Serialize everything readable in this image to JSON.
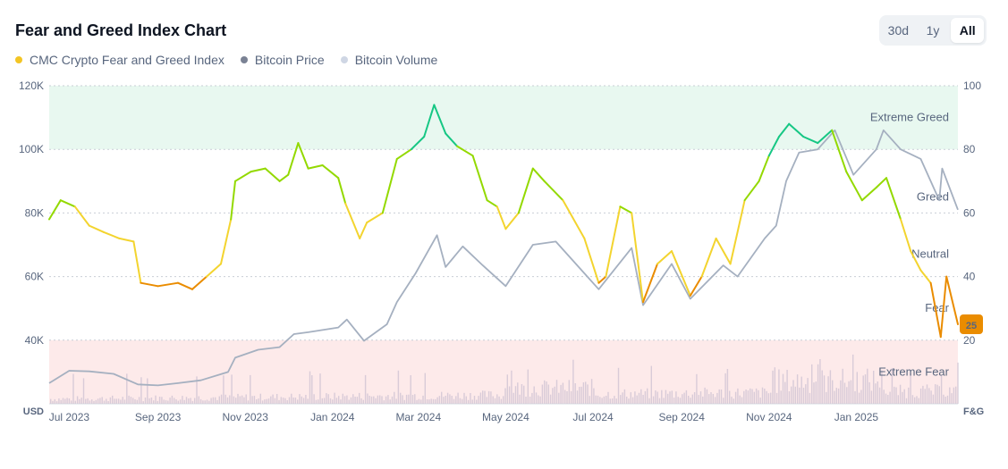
{
  "header": {
    "title": "Fear and Greed Index Chart"
  },
  "range": {
    "options": [
      "30d",
      "1y",
      "All"
    ],
    "selected": "All"
  },
  "legend": [
    {
      "label": "CMC Crypto Fear and Greed Index",
      "color": "#f3c524"
    },
    {
      "label": "Bitcoin Price",
      "color": "#7a8294"
    },
    {
      "label": "Bitcoin Volume",
      "color": "#cfd6e4"
    }
  ],
  "colors": {
    "extreme_fear": "#ea3943",
    "fear": "#ea8c00",
    "neutral": "#f3d42f",
    "greed": "#93d900",
    "extreme_greed": "#16c784",
    "price": "#a5b0c0",
    "volume": "#cfc3d3",
    "band_greed": "#e8f8f0",
    "band_fear": "#fdeaea",
    "badge": "#ea8c00"
  },
  "chart_data": {
    "type": "line",
    "x_ticks": [
      "Jul 2023",
      "Sep 2023",
      "Nov 2023",
      "Jan 2024",
      "Mar 2024",
      "May 2024",
      "Jul 2024",
      "Sep 2024",
      "Nov 2024",
      "Jan 2025"
    ],
    "x_range": [
      "2023-06-17",
      "2025-03-13"
    ],
    "left_axis": {
      "unit": "USD",
      "ticks": [
        "40K",
        "60K",
        "80K",
        "100K",
        "120K"
      ],
      "range": [
        20000,
        120000
      ]
    },
    "right_axis": {
      "unit": "F&G",
      "ticks": [
        "20",
        "40",
        "60",
        "80",
        "100"
      ],
      "range": [
        0,
        100
      ]
    },
    "zones": [
      {
        "label": "Extreme Greed",
        "value": 90
      },
      {
        "label": "Greed",
        "value": 65
      },
      {
        "label": "Neutral",
        "value": 47
      },
      {
        "label": "Fear",
        "value": 30
      },
      {
        "label": "Extreme Fear",
        "value": 10
      }
    ],
    "bands": [
      {
        "from": 80,
        "to": 100,
        "kind": "greed"
      },
      {
        "from": 0,
        "to": 20,
        "kind": "fear"
      }
    ],
    "current_value": "25",
    "series": [
      {
        "name": "CMC Crypto Fear and Greed Index",
        "axis": "right",
        "points": [
          [
            "2023-06-17",
            58
          ],
          [
            "2023-06-25",
            64
          ],
          [
            "2023-07-05",
            62
          ],
          [
            "2023-07-15",
            56
          ],
          [
            "2023-07-25",
            54
          ],
          [
            "2023-08-05",
            52
          ],
          [
            "2023-08-15",
            51
          ],
          [
            "2023-08-20",
            38
          ],
          [
            "2023-09-01",
            37
          ],
          [
            "2023-09-15",
            38
          ],
          [
            "2023-09-25",
            36
          ],
          [
            "2023-10-05",
            40
          ],
          [
            "2023-10-15",
            44
          ],
          [
            "2023-10-22",
            58
          ],
          [
            "2023-10-25",
            70
          ],
          [
            "2023-11-05",
            73
          ],
          [
            "2023-11-15",
            74
          ],
          [
            "2023-11-25",
            70
          ],
          [
            "2023-12-01",
            72
          ],
          [
            "2023-12-08",
            82
          ],
          [
            "2023-12-15",
            74
          ],
          [
            "2023-12-25",
            75
          ],
          [
            "2024-01-05",
            71
          ],
          [
            "2024-01-10",
            63
          ],
          [
            "2024-01-20",
            52
          ],
          [
            "2024-01-25",
            57
          ],
          [
            "2024-02-05",
            60
          ],
          [
            "2024-02-15",
            77
          ],
          [
            "2024-02-25",
            80
          ],
          [
            "2024-03-05",
            84
          ],
          [
            "2024-03-12",
            94
          ],
          [
            "2024-03-20",
            85
          ],
          [
            "2024-03-28",
            81
          ],
          [
            "2024-04-08",
            78
          ],
          [
            "2024-04-18",
            64
          ],
          [
            "2024-04-25",
            62
          ],
          [
            "2024-05-01",
            55
          ],
          [
            "2024-05-10",
            60
          ],
          [
            "2024-05-20",
            74
          ],
          [
            "2024-05-28",
            70
          ],
          [
            "2024-06-10",
            64
          ],
          [
            "2024-06-25",
            52
          ],
          [
            "2024-07-05",
            38
          ],
          [
            "2024-07-10",
            40
          ],
          [
            "2024-07-20",
            62
          ],
          [
            "2024-07-28",
            60
          ],
          [
            "2024-08-05",
            32
          ],
          [
            "2024-08-15",
            44
          ],
          [
            "2024-08-25",
            48
          ],
          [
            "2024-09-07",
            34
          ],
          [
            "2024-09-15",
            40
          ],
          [
            "2024-09-25",
            52
          ],
          [
            "2024-10-05",
            44
          ],
          [
            "2024-10-15",
            64
          ],
          [
            "2024-10-25",
            70
          ],
          [
            "2024-11-01",
            78
          ],
          [
            "2024-11-08",
            84
          ],
          [
            "2024-11-15",
            88
          ],
          [
            "2024-11-25",
            84
          ],
          [
            "2024-12-05",
            82
          ],
          [
            "2024-12-15",
            86
          ],
          [
            "2024-12-25",
            73
          ],
          [
            "2025-01-05",
            64
          ],
          [
            "2025-01-15",
            68
          ],
          [
            "2025-01-22",
            71
          ],
          [
            "2025-02-01",
            58
          ],
          [
            "2025-02-08",
            48
          ],
          [
            "2025-02-15",
            42
          ],
          [
            "2025-02-22",
            38
          ],
          [
            "2025-03-01",
            21
          ],
          [
            "2025-03-05",
            40
          ],
          [
            "2025-03-13",
            25
          ]
        ]
      },
      {
        "name": "Bitcoin Price",
        "axis": "left",
        "points": [
          [
            "2023-06-17",
            26500
          ],
          [
            "2023-07-01",
            30400
          ],
          [
            "2023-07-15",
            30200
          ],
          [
            "2023-08-01",
            29400
          ],
          [
            "2023-08-18",
            26100
          ],
          [
            "2023-09-01",
            25800
          ],
          [
            "2023-09-15",
            26500
          ],
          [
            "2023-10-01",
            27400
          ],
          [
            "2023-10-20",
            30000
          ],
          [
            "2023-10-25",
            34500
          ],
          [
            "2023-11-10",
            37000
          ],
          [
            "2023-11-25",
            37800
          ],
          [
            "2023-12-05",
            41900
          ],
          [
            "2023-12-15",
            42500
          ],
          [
            "2024-01-05",
            44000
          ],
          [
            "2024-01-11",
            46500
          ],
          [
            "2024-01-23",
            39800
          ],
          [
            "2024-02-08",
            45000
          ],
          [
            "2024-02-15",
            52000
          ],
          [
            "2024-02-28",
            61000
          ],
          [
            "2024-03-14",
            73000
          ],
          [
            "2024-03-20",
            63000
          ],
          [
            "2024-04-01",
            69500
          ],
          [
            "2024-04-15",
            63500
          ],
          [
            "2024-05-01",
            57000
          ],
          [
            "2024-05-20",
            70000
          ],
          [
            "2024-06-05",
            71000
          ],
          [
            "2024-06-25",
            61000
          ],
          [
            "2024-07-05",
            56000
          ],
          [
            "2024-07-28",
            69000
          ],
          [
            "2024-08-05",
            51000
          ],
          [
            "2024-08-25",
            64000
          ],
          [
            "2024-09-07",
            53000
          ],
          [
            "2024-09-30",
            63500
          ],
          [
            "2024-10-10",
            60000
          ],
          [
            "2024-10-29",
            72000
          ],
          [
            "2024-11-06",
            76000
          ],
          [
            "2024-11-13",
            90000
          ],
          [
            "2024-11-22",
            99000
          ],
          [
            "2024-12-05",
            100000
          ],
          [
            "2024-12-17",
            106000
          ],
          [
            "2024-12-30",
            92000
          ],
          [
            "2025-01-15",
            100000
          ],
          [
            "2025-01-20",
            106000
          ],
          [
            "2025-02-01",
            100000
          ],
          [
            "2025-02-15",
            97000
          ],
          [
            "2025-02-28",
            84000
          ],
          [
            "2025-03-02",
            94000
          ],
          [
            "2025-03-13",
            81000
          ]
        ]
      }
    ]
  }
}
